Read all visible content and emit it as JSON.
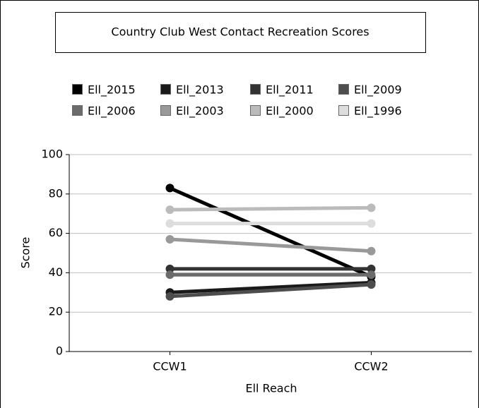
{
  "chart_data": {
    "type": "line",
    "title": "Country Club West Contact Recreation Scores",
    "x_label": "Ell Reach",
    "y_label": "Score",
    "categories": [
      "CCW1",
      "CCW2"
    ],
    "series": [
      {
        "name": "Ell_2015",
        "color": "#000000",
        "values": [
          83,
          38
        ]
      },
      {
        "name": "Ell_2013",
        "color": "#1a1a1a",
        "values": [
          30,
          35
        ]
      },
      {
        "name": "Ell_2011",
        "color": "#333333",
        "values": [
          42,
          42
        ]
      },
      {
        "name": "Ell_2009",
        "color": "#4d4d4d",
        "values": [
          28,
          34
        ]
      },
      {
        "name": "Ell_2006",
        "color": "#6b6b6b",
        "values": [
          39,
          39
        ]
      },
      {
        "name": "Ell_2003",
        "color": "#999999",
        "values": [
          57,
          51
        ]
      },
      {
        "name": "Ell_2000",
        "color": "#bbbbbb",
        "values": [
          72,
          73
        ]
      },
      {
        "name": "Ell_1996",
        "color": "#dddddd",
        "values": [
          65,
          65
        ]
      }
    ],
    "ylim": [
      0,
      100
    ],
    "yticks": [
      0,
      20,
      40,
      60,
      80,
      100
    ],
    "grid": true
  }
}
